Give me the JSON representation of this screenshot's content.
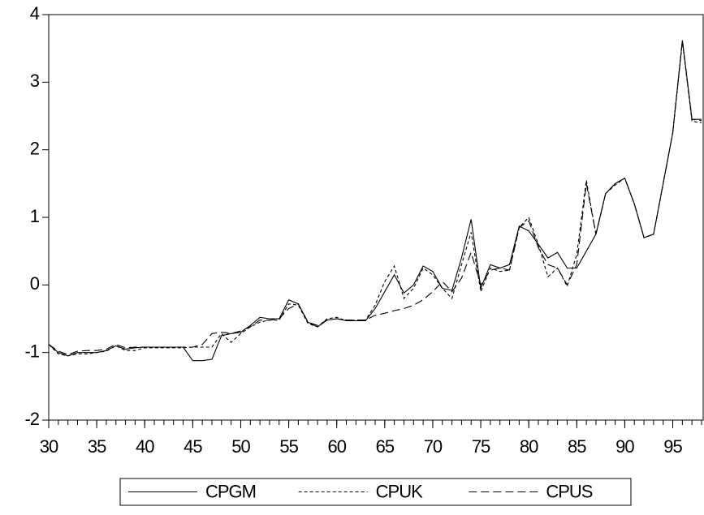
{
  "chart_data": {
    "type": "line",
    "x": [
      30,
      31,
      32,
      33,
      34,
      35,
      36,
      37,
      38,
      39,
      40,
      41,
      42,
      43,
      44,
      45,
      46,
      47,
      48,
      49,
      50,
      51,
      52,
      53,
      54,
      55,
      56,
      57,
      58,
      59,
      60,
      61,
      62,
      63,
      64,
      65,
      66,
      67,
      68,
      69,
      70,
      71,
      72,
      73,
      74,
      75,
      76,
      77,
      78,
      79,
      80,
      81,
      82,
      83,
      84,
      85,
      86,
      87,
      88,
      89,
      90,
      91,
      92,
      93,
      94,
      95,
      96,
      97,
      98
    ],
    "series": [
      {
        "name": "CPGM",
        "color": "#000000",
        "style": "solid",
        "values": [
          -0.88,
          -1.0,
          -1.05,
          -1.0,
          -1.0,
          -1.0,
          -0.97,
          -0.9,
          -0.95,
          -0.93,
          -0.92,
          -0.92,
          -0.92,
          -0.92,
          -0.92,
          -1.12,
          -1.12,
          -1.1,
          -0.75,
          -0.72,
          -0.7,
          -0.6,
          -0.48,
          -0.5,
          -0.5,
          -0.22,
          -0.28,
          -0.55,
          -0.62,
          -0.52,
          -0.5,
          -0.53,
          -0.53,
          -0.53,
          -0.35,
          -0.1,
          0.15,
          -0.12,
          0.0,
          0.28,
          0.2,
          -0.05,
          -0.08,
          0.4,
          0.97,
          -0.05,
          0.3,
          0.25,
          0.3,
          0.87,
          0.8,
          0.6,
          0.4,
          0.48,
          0.25,
          0.25,
          0.5,
          0.75,
          1.35,
          1.5,
          1.58,
          1.2,
          0.7,
          0.75,
          1.5,
          2.25,
          3.62,
          2.45,
          2.45
        ]
      },
      {
        "name": "CPUK",
        "color": "#000000",
        "style": "dotted",
        "values": [
          -0.88,
          -1.02,
          -1.05,
          -1.02,
          -1.02,
          -1.0,
          -0.98,
          -0.9,
          -0.97,
          -0.97,
          -0.93,
          -0.93,
          -0.93,
          -0.93,
          -0.93,
          -0.92,
          -0.92,
          -0.92,
          -0.72,
          -0.85,
          -0.72,
          -0.62,
          -0.55,
          -0.52,
          -0.52,
          -0.28,
          -0.3,
          -0.57,
          -0.62,
          -0.5,
          -0.48,
          -0.53,
          -0.52,
          -0.52,
          -0.3,
          0.05,
          0.28,
          -0.2,
          -0.05,
          0.25,
          0.15,
          -0.05,
          -0.2,
          0.3,
          0.78,
          -0.1,
          0.25,
          0.2,
          0.22,
          0.85,
          1.0,
          0.6,
          0.12,
          0.25,
          -0.02,
          0.45,
          1.55,
          0.75,
          1.35,
          1.48,
          1.58,
          1.2,
          0.7,
          0.75,
          1.5,
          2.25,
          3.6,
          2.42,
          2.4
        ]
      },
      {
        "name": "CPUS",
        "color": "#000000",
        "style": "dashed",
        "values": [
          -0.88,
          -0.98,
          -1.03,
          -0.98,
          -0.97,
          -0.97,
          -0.95,
          -0.88,
          -0.93,
          -0.92,
          -0.92,
          -0.92,
          -0.92,
          -0.92,
          -0.92,
          -0.92,
          -0.88,
          -0.72,
          -0.7,
          -0.72,
          -0.68,
          -0.62,
          -0.52,
          -0.52,
          -0.5,
          -0.35,
          -0.28,
          -0.55,
          -0.6,
          -0.52,
          -0.5,
          -0.52,
          -0.52,
          -0.52,
          -0.45,
          -0.42,
          -0.38,
          -0.35,
          -0.3,
          -0.22,
          -0.1,
          0.05,
          -0.1,
          0.1,
          0.48,
          0.0,
          0.22,
          0.25,
          0.22,
          0.85,
          0.95,
          0.55,
          0.3,
          0.25,
          0.0,
          0.3,
          1.5,
          0.75,
          1.35,
          1.5,
          1.58,
          1.2,
          0.7,
          0.75,
          1.5,
          2.25,
          3.62,
          2.45,
          2.43
        ]
      }
    ],
    "xlim": [
      30,
      98
    ],
    "xticks": [
      30,
      35,
      40,
      45,
      50,
      55,
      60,
      65,
      70,
      75,
      80,
      85,
      90,
      95
    ],
    "ylim": [
      -2,
      4
    ],
    "yticks": [
      -2,
      -1,
      0,
      1,
      2,
      3,
      4
    ],
    "legend": "bottom"
  }
}
